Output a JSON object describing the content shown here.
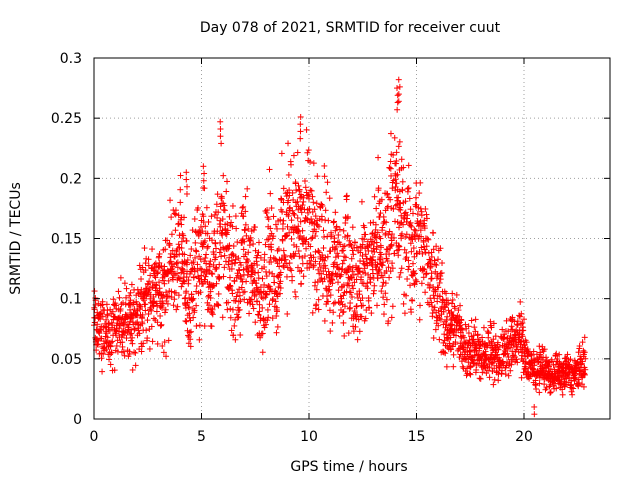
{
  "chart_data": {
    "type": "scatter",
    "title": "Day 078 of 2021, SRMTID for receiver cuut",
    "xlabel": "GPS time / hours",
    "ylabel": "SRMTID / TECUs",
    "xlim": [
      0,
      24
    ],
    "ylim": [
      0,
      0.3
    ],
    "x_ticks": [
      0,
      5,
      10,
      15,
      20
    ],
    "y_ticks": [
      0,
      0.05,
      0.1,
      0.15,
      0.2,
      0.25,
      0.3
    ],
    "x_tick_labels": [
      "0",
      "5",
      "10",
      "15",
      "20"
    ],
    "y_tick_labels": [
      "0",
      "0.05",
      "0.1",
      "0.15",
      "0.2",
      "0.25",
      "0.3"
    ],
    "grid": true,
    "legend": "none",
    "marker": "plus",
    "point_color": "#ff0000",
    "series": [
      {
        "x": [
          0.0,
          0.25,
          0.5,
          0.75,
          1.0,
          1.25,
          1.5,
          1.75,
          2.0,
          2.25,
          2.5,
          2.75,
          3.0,
          3.25,
          3.5,
          3.75,
          4.0,
          4.25,
          4.5,
          4.75,
          5.0,
          5.25,
          5.5,
          5.75,
          6.0,
          6.25,
          6.5,
          6.75,
          7.0,
          7.25,
          7.5,
          7.75,
          8.0,
          8.25,
          8.5,
          8.75,
          9.0,
          9.25,
          9.5,
          9.75,
          10.0,
          10.25,
          10.5,
          10.75,
          11.0,
          11.25,
          11.5,
          11.75,
          12.0,
          12.25,
          12.5,
          12.75,
          13.0,
          13.25,
          13.5,
          13.75,
          14.0,
          14.25,
          14.5,
          14.75,
          15.0,
          15.25,
          15.5,
          15.75,
          16.0,
          16.25,
          16.5,
          16.75,
          17.0,
          17.25,
          17.5,
          17.75,
          18.0,
          18.25,
          18.5,
          18.75,
          19.0,
          19.25,
          19.5,
          19.75,
          20.0,
          20.25,
          20.5,
          20.75,
          21.0,
          21.25,
          21.5,
          21.75,
          22.0,
          22.25,
          22.5,
          22.75
        ],
        "y": [
          0.08,
          0.07,
          0.075,
          0.068,
          0.08,
          0.085,
          0.078,
          0.082,
          0.09,
          0.095,
          0.11,
          0.1,
          0.11,
          0.1,
          0.12,
          0.13,
          0.14,
          0.12,
          0.1,
          0.13,
          0.14,
          0.13,
          0.12,
          0.14,
          0.15,
          0.13,
          0.12,
          0.11,
          0.14,
          0.13,
          0.11,
          0.1,
          0.13,
          0.14,
          0.12,
          0.15,
          0.16,
          0.17,
          0.16,
          0.15,
          0.16,
          0.14,
          0.13,
          0.15,
          0.12,
          0.13,
          0.11,
          0.14,
          0.12,
          0.11,
          0.13,
          0.12,
          0.14,
          0.15,
          0.13,
          0.16,
          0.18,
          0.17,
          0.15,
          0.14,
          0.15,
          0.14,
          0.13,
          0.12,
          0.11,
          0.09,
          0.07,
          0.08,
          0.07,
          0.06,
          0.055,
          0.06,
          0.05,
          0.055,
          0.06,
          0.05,
          0.055,
          0.06,
          0.065,
          0.07,
          0.06,
          0.045,
          0.04,
          0.045,
          0.04,
          0.035,
          0.04,
          0.035,
          0.04,
          0.035,
          0.04,
          0.045
        ]
      }
    ],
    "peaks": [
      {
        "x": 5.9,
        "y": 0.247
      },
      {
        "x": 9.6,
        "y": 0.251
      },
      {
        "x": 14.2,
        "y": 0.282
      },
      {
        "x": 14.1,
        "y": 0.275
      },
      {
        "x": 13.8,
        "y": 0.22
      },
      {
        "x": 4.3,
        "y": 0.205
      },
      {
        "x": 5.1,
        "y": 0.21
      },
      {
        "x": 20.5,
        "y": 0.01
      }
    ]
  }
}
